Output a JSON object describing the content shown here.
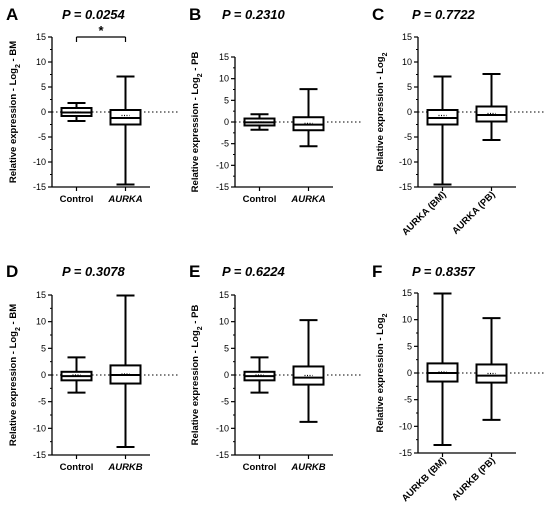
{
  "chart_data": [
    {
      "type": "box",
      "panel": "A",
      "title": "P = 0.0254",
      "ylabel": "Relative expression - Log2 - BM",
      "ylim": [
        -15,
        15
      ],
      "yticks": [
        -15,
        -10,
        -5,
        0,
        5,
        10,
        15
      ],
      "significance": "*",
      "categories": [
        {
          "label": "Control",
          "italic": false,
          "min": -1.8,
          "q1": -0.8,
          "median": -0.1,
          "mean": 0.0,
          "q3": 0.8,
          "max": 1.8
        },
        {
          "label": "AURKA",
          "italic": true,
          "min": -14.5,
          "q1": -2.5,
          "median": -1.2,
          "mean": -0.7,
          "q3": 0.4,
          "max": 7.1
        }
      ]
    },
    {
      "type": "box",
      "panel": "B",
      "title": "P = 0.2310",
      "ylabel": "Relative expression - Log2 - PB",
      "ylim": [
        -15,
        15
      ],
      "yticks": [
        -15,
        -10,
        -5,
        0,
        5,
        10,
        15
      ],
      "categories": [
        {
          "label": "Control",
          "italic": false,
          "min": -1.8,
          "q1": -0.8,
          "median": -0.1,
          "mean": 0.0,
          "q3": 0.8,
          "max": 1.8
        },
        {
          "label": "AURKA",
          "italic": true,
          "min": -5.6,
          "q1": -1.9,
          "median": -0.6,
          "mean": -0.3,
          "q3": 1.1,
          "max": 7.6
        }
      ]
    },
    {
      "type": "box",
      "panel": "C",
      "title": "P = 0.7722",
      "ylabel": "Relative expression - Log2",
      "ylim": [
        -15,
        15
      ],
      "yticks": [
        -15,
        -10,
        -5,
        0,
        5,
        10,
        15
      ],
      "rotated_labels": true,
      "categories": [
        {
          "label": "AURKA (BM)",
          "italic": false,
          "min": -14.5,
          "q1": -2.5,
          "median": -1.2,
          "mean": -0.7,
          "q3": 0.4,
          "max": 7.1
        },
        {
          "label": "AURKA (PB)",
          "italic": false,
          "min": -5.6,
          "q1": -1.9,
          "median": -0.6,
          "mean": -0.3,
          "q3": 1.1,
          "max": 7.6
        }
      ]
    },
    {
      "type": "box",
      "panel": "D",
      "title": "P = 0.3078",
      "ylabel": "Relative expression - Log2 - BM",
      "ylim": [
        -15,
        15
      ],
      "yticks": [
        -15,
        -10,
        -5,
        0,
        5,
        10,
        15
      ],
      "categories": [
        {
          "label": "Control",
          "italic": false,
          "min": -3.3,
          "q1": -1.0,
          "median": -0.2,
          "mean": 0.0,
          "q3": 0.6,
          "max": 3.3
        },
        {
          "label": "AURKB",
          "italic": true,
          "min": -13.5,
          "q1": -1.6,
          "median": 0.0,
          "mean": 0.2,
          "q3": 1.8,
          "max": 14.9
        }
      ]
    },
    {
      "type": "box",
      "panel": "E",
      "title": "P = 0.6224",
      "ylabel": "Relative expression - Log2 - PB",
      "ylim": [
        -15,
        15
      ],
      "yticks": [
        -15,
        -10,
        -5,
        0,
        5,
        10,
        15
      ],
      "categories": [
        {
          "label": "Control",
          "italic": false,
          "min": -3.3,
          "q1": -1.0,
          "median": -0.2,
          "mean": 0.0,
          "q3": 0.6,
          "max": 3.3
        },
        {
          "label": "AURKB",
          "italic": true,
          "min": -8.8,
          "q1": -1.8,
          "median": -0.5,
          "mean": -0.1,
          "q3": 1.6,
          "max": 10.3
        }
      ]
    },
    {
      "type": "box",
      "panel": "F",
      "title": "P = 0.8357",
      "ylabel": "Relative expression - Log2",
      "ylim": [
        -15,
        15
      ],
      "yticks": [
        -15,
        -10,
        -5,
        0,
        5,
        10,
        15
      ],
      "rotated_labels": true,
      "categories": [
        {
          "label": "AURKB (BM)",
          "italic": false,
          "min": -13.5,
          "q1": -1.6,
          "median": 0.0,
          "mean": 0.2,
          "q3": 1.8,
          "max": 14.9
        },
        {
          "label": "AURKB (PB)",
          "italic": false,
          "min": -8.8,
          "q1": -1.8,
          "median": -0.5,
          "mean": -0.1,
          "q3": 1.6,
          "max": 10.3
        }
      ]
    }
  ]
}
